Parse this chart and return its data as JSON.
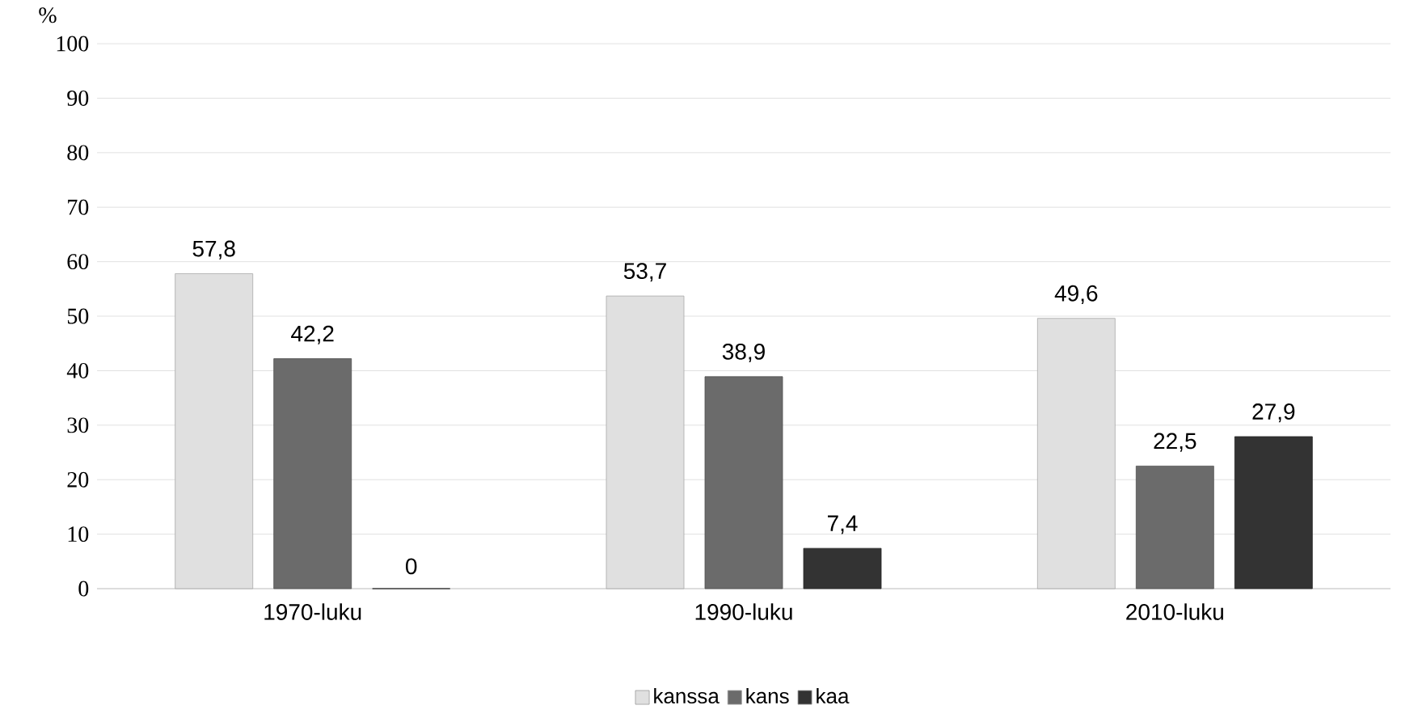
{
  "chart_data": {
    "type": "bar",
    "ylabel": "%",
    "categories": [
      "1970-luku",
      "1990-luku",
      "2010-luku"
    ],
    "series": [
      {
        "name": "kanssa",
        "color": "#e0e0e0",
        "values": [
          57.8,
          53.7,
          49.6
        ],
        "value_labels": [
          "57,8",
          "53,7",
          "49,6"
        ]
      },
      {
        "name": "kans",
        "color": "#6b6b6b",
        "values": [
          42.2,
          38.9,
          22.5
        ],
        "value_labels": [
          "42,2",
          "38,9",
          "22,5"
        ]
      },
      {
        "name": "kaa",
        "color": "#333333",
        "values": [
          0,
          7.4,
          27.9
        ],
        "value_labels": [
          "0",
          "7,4",
          "27,9"
        ]
      }
    ],
    "ylim": [
      0,
      100
    ],
    "yticks": [
      0,
      10,
      20,
      30,
      40,
      50,
      60,
      70,
      80,
      90,
      100
    ],
    "grid": "y",
    "legend": "bottom"
  }
}
